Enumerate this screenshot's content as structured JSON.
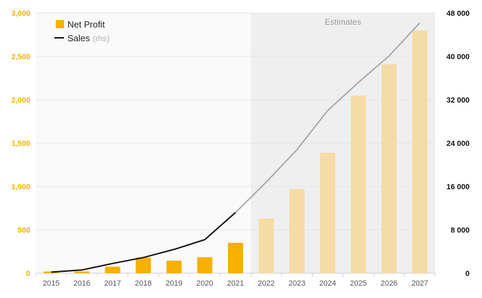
{
  "colors": {
    "bar_actual": "#f7b000",
    "bar_estimate": "#f5dca6",
    "line_actual": "#111111",
    "line_estimate": "#a9a9a9",
    "left_axis_text": "#f7b000",
    "estimates_bg": "#efefef"
  },
  "chart_data": {
    "type": "bar+line",
    "categories": [
      "2015",
      "2016",
      "2017",
      "2018",
      "2019",
      "2020",
      "2021",
      "2022",
      "2023",
      "2024",
      "2025",
      "2026",
      "2027"
    ],
    "series": [
      {
        "name": "Net Profit",
        "axis": "left",
        "kind": "bar",
        "values": [
          20,
          20,
          75,
          180,
          145,
          185,
          350,
          630,
          970,
          1390,
          2050,
          2410,
          2800
        ]
      },
      {
        "name": "Sales",
        "axis": "right",
        "kind": "line",
        "values": [
          200,
          600,
          1800,
          2900,
          4400,
          6200,
          11200,
          16800,
          22800,
          30000,
          35200,
          40100,
          46200
        ]
      }
    ],
    "estimates_start_index": 7,
    "estimates_label": "Estimates",
    "legend": [
      {
        "label": "Net Profit",
        "note": ""
      },
      {
        "label": "Sales",
        "note": "(rhs)"
      }
    ],
    "y_left": {
      "min": 0,
      "max": 3000,
      "ticks": [
        0,
        500,
        1000,
        1500,
        2000,
        2500,
        3000
      ],
      "tick_labels": [
        "0",
        "500",
        "1,000",
        "1,500",
        "2,000",
        "2,500",
        "3,000"
      ]
    },
    "y_right": {
      "min": 0,
      "max": 48000,
      "ticks": [
        0,
        8000,
        16000,
        24000,
        32000,
        40000,
        48000
      ],
      "tick_labels": [
        "0",
        "8 000",
        "16 000",
        "24 000",
        "32 000",
        "40 000",
        "48 000"
      ]
    },
    "grid": true,
    "legend_position": "top-left"
  }
}
